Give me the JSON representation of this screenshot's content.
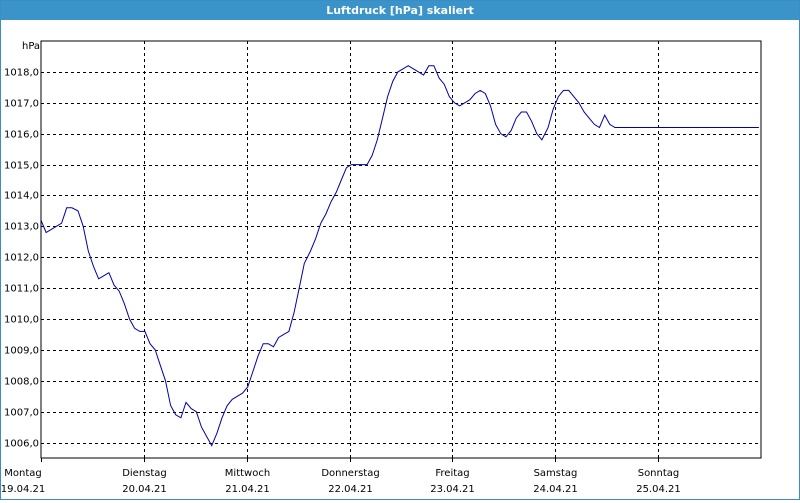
{
  "window": {
    "title": "Luftdruck [hPa] skaliert"
  },
  "chart_data": {
    "type": "line",
    "title": "Luftdruck [hPa] skaliert",
    "unit": "hPa",
    "ylim": [
      1005.5,
      1019.0
    ],
    "yticks": [
      1006.0,
      1007.0,
      1008.0,
      1009.0,
      1010.0,
      1011.0,
      1012.0,
      1013.0,
      1014.0,
      1015.0,
      1016.0,
      1017.0,
      1018.0
    ],
    "ytick_labels": [
      "1006,0",
      "1007,0",
      "1008,0",
      "1009,0",
      "1010,0",
      "1011,0",
      "1012,0",
      "1013,0",
      "1014,0",
      "1015,0",
      "1016,0",
      "1017,0",
      "1018,0"
    ],
    "xlim": [
      0,
      7.0
    ],
    "days": [
      {
        "weekday": "Montag",
        "date": "19.04.21"
      },
      {
        "weekday": "Dienstag",
        "date": "20.04.21"
      },
      {
        "weekday": "Mittwoch",
        "date": "21.04.21"
      },
      {
        "weekday": "Donnerstag",
        "date": "22.04.21"
      },
      {
        "weekday": "Freitag",
        "date": "23.04.21"
      },
      {
        "weekday": "Samstag",
        "date": "24.04.21"
      },
      {
        "weekday": "Sonntag",
        "date": "25.04.21"
      }
    ],
    "grid": true,
    "colors": {
      "line": "#0000aa",
      "grid": "#000000"
    },
    "series": [
      {
        "x": [
          0.0,
          0.05,
          0.1,
          0.15,
          0.2,
          0.25,
          0.3,
          0.36,
          0.41,
          0.46,
          0.51,
          0.56,
          0.61,
          0.66,
          0.71,
          0.76,
          0.81,
          0.86,
          0.91,
          0.96,
          1.01,
          1.06,
          1.11,
          1.16,
          1.21,
          1.26,
          1.31,
          1.36,
          1.41,
          1.46,
          1.51,
          1.56,
          1.61,
          1.66,
          1.71,
          1.76,
          1.81,
          1.86,
          1.91,
          1.96,
          2.01,
          2.06,
          2.11,
          2.16,
          2.21,
          2.26,
          2.31,
          2.36,
          2.41,
          2.46,
          2.51,
          2.56,
          2.62,
          2.67,
          2.72,
          2.77,
          2.82,
          2.87,
          2.92,
          2.97,
          3.02,
          3.07,
          3.12,
          3.17,
          3.22,
          3.27,
          3.32,
          3.37,
          3.42,
          3.47,
          3.52,
          3.57,
          3.62,
          3.67,
          3.72,
          3.77,
          3.82,
          3.87,
          3.92,
          3.97,
          4.02,
          4.07,
          4.12,
          4.17,
          4.22,
          4.27,
          4.32,
          4.37,
          4.42,
          4.47,
          4.52,
          4.57,
          4.62,
          4.67,
          4.72,
          4.77,
          4.82,
          4.87,
          4.93,
          4.98,
          5.03,
          5.08,
          5.13,
          5.18,
          5.23,
          5.28,
          5.33,
          5.38,
          5.43,
          5.48,
          5.53,
          5.58,
          5.63,
          5.68,
          5.73,
          5.78,
          5.83,
          5.88,
          5.93,
          5.98,
          6.03,
          6.08,
          6.13,
          6.18,
          6.23,
          6.28,
          6.33,
          6.38,
          6.43,
          6.48,
          6.53,
          6.58,
          6.63,
          6.68,
          6.73,
          6.78,
          6.83,
          6.88,
          6.93,
          6.98
        ],
        "values": [
          1013.2,
          1012.8,
          1012.9,
          1013.0,
          1013.1,
          1013.6,
          1013.6,
          1013.5,
          1013.0,
          1012.2,
          1011.7,
          1011.3,
          1011.4,
          1011.5,
          1011.1,
          1010.9,
          1010.5,
          1010.0,
          1009.7,
          1009.6,
          1009.6,
          1009.2,
          1009.0,
          1008.5,
          1008.0,
          1007.2,
          1006.9,
          1006.8,
          1007.3,
          1007.1,
          1007.0,
          1006.5,
          1006.2,
          1005.9,
          1006.3,
          1006.8,
          1007.2,
          1007.4,
          1007.5,
          1007.6,
          1007.8,
          1008.3,
          1008.8,
          1009.2,
          1009.2,
          1009.1,
          1009.4,
          1009.5,
          1009.6,
          1010.2,
          1011.0,
          1011.8,
          1012.2,
          1012.6,
          1013.1,
          1013.4,
          1013.8,
          1014.1,
          1014.5,
          1014.9,
          1015.0,
          1015.0,
          1015.0,
          1015.0,
          1015.3,
          1015.8,
          1016.5,
          1017.2,
          1017.7,
          1018.0,
          1018.1,
          1018.2,
          1018.1,
          1018.0,
          1017.9,
          1018.2,
          1018.2,
          1017.8,
          1017.6,
          1017.2,
          1017.0,
          1016.9,
          1017.0,
          1017.1,
          1017.3,
          1017.4,
          1017.3,
          1016.9,
          1016.3,
          1016.0,
          1015.9,
          1016.1,
          1016.5,
          1016.7,
          1016.7,
          1016.4,
          1016.0,
          1015.8,
          1016.2,
          1016.8,
          1017.2,
          1017.4,
          1017.4,
          1017.2,
          1017.0,
          1016.7,
          1016.5,
          1016.3,
          1016.2,
          1016.6,
          1016.3,
          1016.2,
          1016.2,
          1016.2,
          1016.2,
          1016.2,
          1016.2,
          1016.2,
          1016.2,
          1016.2,
          1016.2,
          1016.2,
          1016.2,
          1016.2,
          1016.2,
          1016.2,
          1016.2,
          1016.2,
          1016.2,
          1016.2,
          1016.2,
          1016.2,
          1016.2,
          1016.2,
          1016.2,
          1016.2,
          1016.2,
          1016.2,
          1016.2,
          1016.2
        ]
      }
    ]
  }
}
